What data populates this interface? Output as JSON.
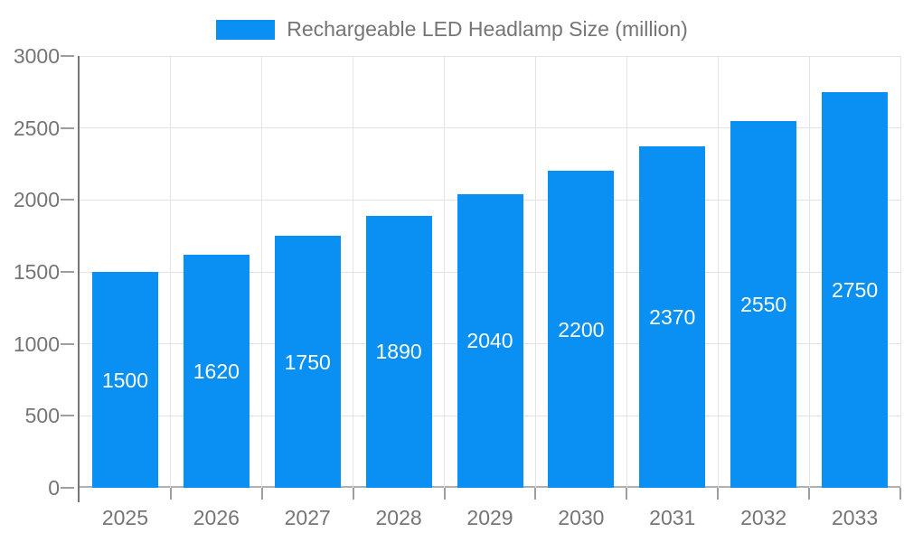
{
  "chart_data": {
    "type": "bar",
    "title": "Rechargeable LED Headlamp Size (million)",
    "categories": [
      "2025",
      "2026",
      "2027",
      "2028",
      "2029",
      "2030",
      "2031",
      "2032",
      "2033"
    ],
    "values": [
      1500,
      1620,
      1750,
      1890,
      2040,
      2200,
      2370,
      2550,
      2750
    ],
    "series": [
      {
        "name": "Rechargeable LED Headlamp Size (million)",
        "values": [
          1500,
          1620,
          1750,
          1890,
          2040,
          2200,
          2370,
          2550,
          2750
        ]
      }
    ],
    "xlabel": "",
    "ylabel": "",
    "ylim": [
      0,
      3000
    ],
    "yticks": [
      0,
      500,
      1000,
      1500,
      2000,
      2500,
      3000
    ],
    "grid": true,
    "legend_position": "top",
    "bar_value_labels_visible": true,
    "colors": {
      "bar": "#0a90f2",
      "bar_label": "#ffffff",
      "axis_text": "#757575",
      "gridline": "#e3e3e3",
      "zero_line": "#b0b0b0",
      "tick": "#9e9e9e",
      "y_axis_line": "#757575",
      "background": "#ffffff"
    }
  }
}
